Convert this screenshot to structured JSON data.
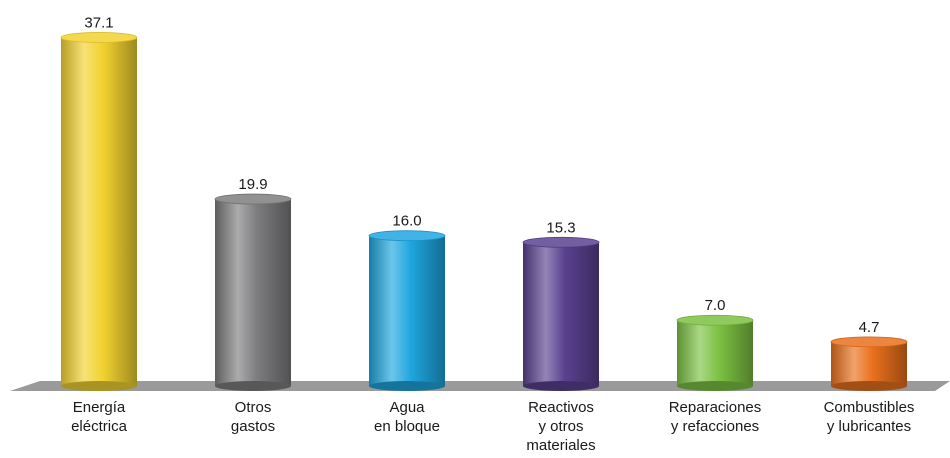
{
  "chart_data": {
    "type": "bar",
    "style": "3d-cylinder",
    "title": "",
    "xlabel": "",
    "ylabel": "",
    "ylim": [
      0,
      40
    ],
    "grid": false,
    "legend": "none",
    "categories": [
      [
        "Energía",
        "eléctrica"
      ],
      [
        "Otros",
        "gastos"
      ],
      [
        "Agua",
        "en bloque"
      ],
      [
        "Reactivos",
        "y otros",
        "materiales"
      ],
      [
        "Reparaciones",
        "y refacciones"
      ],
      [
        "Combustibles",
        "y lubricantes"
      ]
    ],
    "values": [
      37.1,
      19.9,
      16.0,
      15.3,
      7.0,
      4.7
    ],
    "value_labels": [
      "37.1",
      "19.9",
      "16.0",
      "15.3",
      "7.0",
      "4.7"
    ],
    "colors": [
      "#f2d230",
      "#7d7d7f",
      "#1fa6df",
      "#5a4190",
      "#7cc142",
      "#e9701c"
    ],
    "floor_color": "#9a9a9a"
  }
}
